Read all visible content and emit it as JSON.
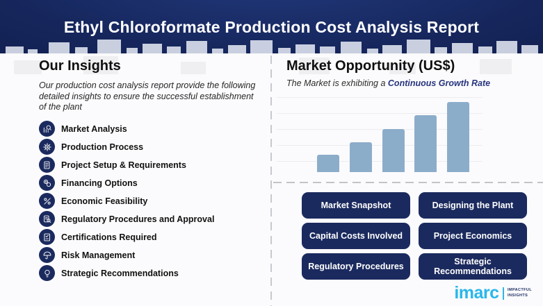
{
  "header": {
    "title": "Ethyl Chloroformate Production Cost Analysis Report"
  },
  "insights": {
    "heading": "Our Insights",
    "description": "Our production cost analysis report provide the following detailed insights to ensure the successful establishment of the plant",
    "items": [
      {
        "icon": "market-analysis-icon",
        "label": "Market Analysis"
      },
      {
        "icon": "production-process-icon",
        "label": "Production Process"
      },
      {
        "icon": "project-setup-icon",
        "label": "Project Setup & Requirements"
      },
      {
        "icon": "financing-options-icon",
        "label": "Financing Options"
      },
      {
        "icon": "economic-feasibility-icon",
        "label": "Economic Feasibility"
      },
      {
        "icon": "regulatory-procedures-icon",
        "label": "Regulatory Procedures and Approval"
      },
      {
        "icon": "certifications-icon",
        "label": "Certifications Required"
      },
      {
        "icon": "risk-management-icon",
        "label": "Risk Management"
      },
      {
        "icon": "strategic-recommendations-icon",
        "label": "Strategic Recommendations"
      }
    ]
  },
  "market_opportunity": {
    "heading": "Market Opportunity (US$)",
    "subtitle_prefix": "The Market is exhibiting a ",
    "subtitle_highlight": "Continuous Growth Rate"
  },
  "chart_data": {
    "type": "bar",
    "title": "Market Opportunity (US$)",
    "subtitle": "The Market is exhibiting a Continuous Growth Rate",
    "categories": [
      "",
      "",
      "",
      "",
      ""
    ],
    "values": [
      25,
      43,
      62,
      82,
      101
    ],
    "xlabel": "",
    "ylabel": "",
    "ylim": [
      0,
      103
    ],
    "grid": "faint horizontal gridlines",
    "baseline_style": "dashed",
    "bar_color": "#8cadca",
    "legend": "none",
    "note": "no axis tick labels or data labels shown; values are relative heights"
  },
  "buttons": [
    {
      "label": "Market Snapshot"
    },
    {
      "label": "Designing the Plant"
    },
    {
      "label": "Capital Costs Involved"
    },
    {
      "label": "Project Economics"
    },
    {
      "label": "Regulatory Procedures"
    },
    {
      "label": "Strategic Recommendations"
    }
  ],
  "logo": {
    "brand": "imarc",
    "tagline_line1": "IMPACTFUL",
    "tagline_line2": "INSIGHTS"
  },
  "colors": {
    "header_navy": "#16265c",
    "accent_navy": "#1b2a5e",
    "bar_blue": "#8cadca",
    "highlight_blue": "#27357e",
    "logo_blue": "#29b7ea"
  }
}
